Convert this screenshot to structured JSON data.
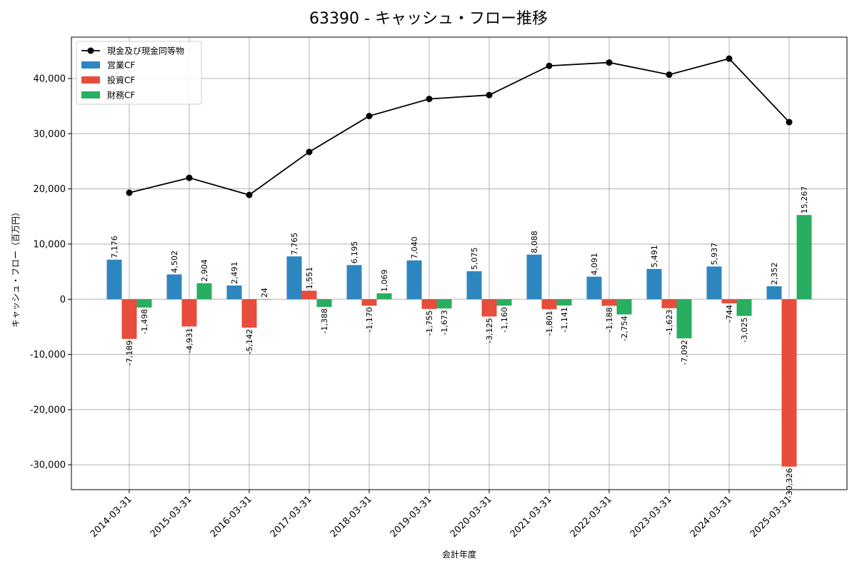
{
  "chart_data": {
    "type": "bar",
    "title": "63390 - キャッシュ・フロー推移",
    "xlabel": "会計年度",
    "ylabel": "キャッシュ・フロー（百万円）",
    "ylim": [
      -34500,
      47500
    ],
    "yticks": [
      -30000,
      -20000,
      -10000,
      0,
      10000,
      20000,
      30000,
      40000
    ],
    "ytick_labels": [
      "-30,000",
      "-20,000",
      "-10,000",
      "0",
      "10,000",
      "20,000",
      "30,000",
      "40,000"
    ],
    "grid": true,
    "legend_position": "top-left",
    "categories": [
      "2014-03-31",
      "2015-03-31",
      "2016-03-31",
      "2017-03-31",
      "2018-03-31",
      "2019-03-31",
      "2020-03-31",
      "2021-03-31",
      "2022-03-31",
      "2023-03-31",
      "2024-03-31",
      "2025-03-31"
    ],
    "line": {
      "name": "現金及び現金同等物",
      "color": "#000000",
      "values": [
        19300,
        22000,
        18900,
        26700,
        33200,
        36300,
        37000,
        42300,
        42900,
        40700,
        43600,
        32100
      ]
    },
    "series": [
      {
        "name": "営業CF",
        "color": "#2e86c1",
        "values": [
          7176,
          4502,
          2491,
          7765,
          6195,
          7040,
          5075,
          8088,
          4091,
          5491,
          5937,
          2352
        ],
        "labels": [
          "7,176",
          "4,502",
          "2,491",
          "7,765",
          "6,195",
          "7,040",
          "5,075",
          "8,088",
          "4,091",
          "5,491",
          "5,937",
          "2,352"
        ]
      },
      {
        "name": "投資CF",
        "color": "#e74c3c",
        "values": [
          -7189,
          -4931,
          -5142,
          1551,
          -1170,
          -1755,
          -3125,
          -1801,
          -1188,
          -1623,
          -744,
          -30326
        ],
        "labels": [
          "-7,189",
          "-4,931",
          "-5,142",
          "1,551",
          "-1,170",
          "-1,755",
          "-3,125",
          "-1,801",
          "-1,188",
          "-1,623",
          "-744",
          "-30,326"
        ]
      },
      {
        "name": "財務CF",
        "color": "#27ae60",
        "values": [
          -1498,
          2904,
          24,
          -1388,
          1069,
          -1673,
          -1160,
          -1141,
          -2754,
          -7092,
          -3025,
          15267
        ],
        "labels": [
          "-1,498",
          "2,904",
          "24",
          "-1,388",
          "1,069",
          "-1,673",
          "-1,160",
          "-1,141",
          "-2,754",
          "-7,092",
          "-3,025",
          "15,267"
        ]
      }
    ]
  }
}
